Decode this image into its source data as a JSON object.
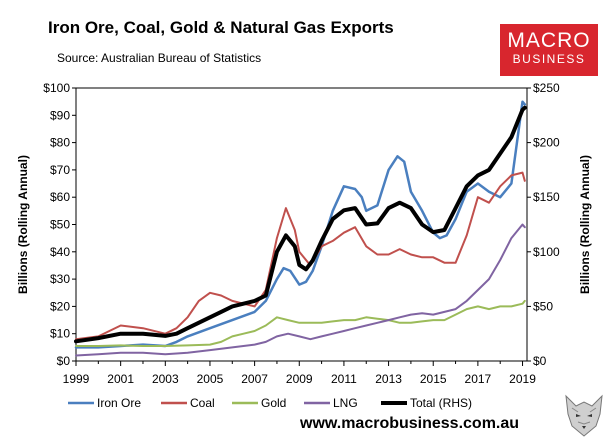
{
  "header": {
    "title": "Iron Ore, Coal, Gold & Natural Gas Exports",
    "subtitle": "Source:  Australian Bureau of Statistics"
  },
  "branding": {
    "logo_line1": "MACRO",
    "logo_line2": "BUSINESS",
    "url": "www.macrobusiness.com.au",
    "logo_color": "#d8262e"
  },
  "chart_data": {
    "type": "line",
    "title": "Iron Ore, Coal, Gold & Natural Gas Exports",
    "source": "Source:  Australian Bureau of Statistics",
    "xlabel": "",
    "ylabel": "Billions (Rolling Annual)",
    "ylabel_right": "Billions (Rolling Annual)",
    "xlim": [
      1999,
      2019.2
    ],
    "ylim": [
      0,
      100
    ],
    "ylim_right": [
      0,
      250
    ],
    "x_ticks": [
      1999,
      2001,
      2003,
      2005,
      2007,
      2009,
      2011,
      2013,
      2015,
      2017,
      2019
    ],
    "y_ticks": [
      0,
      10,
      20,
      30,
      40,
      50,
      60,
      70,
      80,
      90,
      100
    ],
    "y_tick_labels": [
      "$0",
      "$10",
      "$20",
      "$30",
      "$40",
      "$50",
      "$60",
      "$70",
      "$80",
      "$90",
      "$100"
    ],
    "y_ticks_right": [
      0,
      50,
      100,
      150,
      200,
      250
    ],
    "y_tick_labels_right": [
      "$0",
      "$50",
      "$100",
      "$150",
      "$200",
      "$250"
    ],
    "grid": false,
    "legend_position": "bottom",
    "series": [
      {
        "name": "Iron Ore",
        "axis": "left",
        "color": "#4a7fbf",
        "width": 2.5,
        "points": [
          [
            1999,
            5
          ],
          [
            2000,
            5
          ],
          [
            2001,
            5.5
          ],
          [
            2002,
            6
          ],
          [
            2003,
            5.5
          ],
          [
            2003.5,
            7
          ],
          [
            2004,
            9
          ],
          [
            2005,
            12
          ],
          [
            2006,
            15
          ],
          [
            2007,
            18
          ],
          [
            2007.5,
            22
          ],
          [
            2008,
            30
          ],
          [
            2008.3,
            34
          ],
          [
            2008.6,
            33
          ],
          [
            2009,
            28
          ],
          [
            2009.3,
            29
          ],
          [
            2009.6,
            33
          ],
          [
            2010,
            42
          ],
          [
            2010.5,
            55
          ],
          [
            2011,
            64
          ],
          [
            2011.5,
            63
          ],
          [
            2011.8,
            60
          ],
          [
            2012,
            55
          ],
          [
            2012.5,
            57
          ],
          [
            2013,
            70
          ],
          [
            2013.4,
            75
          ],
          [
            2013.7,
            73
          ],
          [
            2014,
            62
          ],
          [
            2014.5,
            55
          ],
          [
            2015,
            47
          ],
          [
            2015.3,
            45
          ],
          [
            2015.6,
            46
          ],
          [
            2016,
            52
          ],
          [
            2016.5,
            62
          ],
          [
            2017,
            65
          ],
          [
            2017.5,
            62
          ],
          [
            2018,
            60
          ],
          [
            2018.5,
            65
          ],
          [
            2019,
            95
          ],
          [
            2019.1,
            94
          ]
        ]
      },
      {
        "name": "Coal",
        "axis": "left",
        "color": "#c0504d",
        "width": 2,
        "points": [
          [
            1999,
            8
          ],
          [
            2000,
            9
          ],
          [
            2001,
            13
          ],
          [
            2002,
            12
          ],
          [
            2003,
            10
          ],
          [
            2003.5,
            12
          ],
          [
            2004,
            16
          ],
          [
            2004.5,
            22
          ],
          [
            2005,
            25
          ],
          [
            2005.5,
            24
          ],
          [
            2006,
            22
          ],
          [
            2006.5,
            21
          ],
          [
            2007,
            20
          ],
          [
            2007.5,
            26
          ],
          [
            2008,
            45
          ],
          [
            2008.4,
            56
          ],
          [
            2008.8,
            48
          ],
          [
            2009,
            40
          ],
          [
            2009.5,
            35
          ],
          [
            2010,
            42
          ],
          [
            2010.5,
            44
          ],
          [
            2011,
            47
          ],
          [
            2011.5,
            49
          ],
          [
            2012,
            42
          ],
          [
            2012.5,
            39
          ],
          [
            2013,
            39
          ],
          [
            2013.5,
            41
          ],
          [
            2014,
            39
          ],
          [
            2014.5,
            38
          ],
          [
            2015,
            38
          ],
          [
            2015.5,
            36
          ],
          [
            2016,
            36
          ],
          [
            2016.5,
            46
          ],
          [
            2017,
            60
          ],
          [
            2017.5,
            58
          ],
          [
            2018,
            64
          ],
          [
            2018.5,
            68
          ],
          [
            2019,
            69
          ],
          [
            2019.1,
            66
          ]
        ]
      },
      {
        "name": "Gold",
        "axis": "left",
        "color": "#9bbb59",
        "width": 2,
        "points": [
          [
            1999,
            5.5
          ],
          [
            2000,
            5.5
          ],
          [
            2001,
            5.7
          ],
          [
            2002,
            5.5
          ],
          [
            2003,
            5.5
          ],
          [
            2004,
            5.7
          ],
          [
            2005,
            6
          ],
          [
            2005.5,
            7
          ],
          [
            2006,
            9
          ],
          [
            2006.5,
            10
          ],
          [
            2007,
            11
          ],
          [
            2007.5,
            13
          ],
          [
            2008,
            16
          ],
          [
            2008.5,
            15
          ],
          [
            2009,
            14
          ],
          [
            2009.5,
            14
          ],
          [
            2010,
            14
          ],
          [
            2010.5,
            14.5
          ],
          [
            2011,
            15
          ],
          [
            2011.5,
            15
          ],
          [
            2012,
            16
          ],
          [
            2012.5,
            15.5
          ],
          [
            2013,
            15
          ],
          [
            2013.5,
            14
          ],
          [
            2014,
            14
          ],
          [
            2014.5,
            14.5
          ],
          [
            2015,
            15
          ],
          [
            2015.5,
            15
          ],
          [
            2016,
            17
          ],
          [
            2016.5,
            19
          ],
          [
            2017,
            20
          ],
          [
            2017.5,
            19
          ],
          [
            2018,
            20
          ],
          [
            2018.5,
            20
          ],
          [
            2019,
            21
          ],
          [
            2019.1,
            22
          ]
        ]
      },
      {
        "name": "LNG",
        "axis": "left",
        "color": "#8064a2",
        "width": 2,
        "points": [
          [
            1999,
            2
          ],
          [
            2000,
            2.5
          ],
          [
            2001,
            3
          ],
          [
            2002,
            3
          ],
          [
            2003,
            2.5
          ],
          [
            2004,
            3
          ],
          [
            2005,
            4
          ],
          [
            2006,
            5
          ],
          [
            2007,
            6
          ],
          [
            2007.5,
            7
          ],
          [
            2008,
            9
          ],
          [
            2008.5,
            10
          ],
          [
            2009,
            9
          ],
          [
            2009.5,
            8
          ],
          [
            2010,
            9
          ],
          [
            2010.5,
            10
          ],
          [
            2011,
            11
          ],
          [
            2011.5,
            12
          ],
          [
            2012,
            13
          ],
          [
            2012.5,
            14
          ],
          [
            2013,
            15
          ],
          [
            2013.5,
            16
          ],
          [
            2014,
            17
          ],
          [
            2014.5,
            17.5
          ],
          [
            2015,
            17
          ],
          [
            2015.5,
            18
          ],
          [
            2016,
            19
          ],
          [
            2016.5,
            22
          ],
          [
            2017,
            26
          ],
          [
            2017.5,
            30
          ],
          [
            2018,
            37
          ],
          [
            2018.5,
            45
          ],
          [
            2019,
            50
          ],
          [
            2019.1,
            49
          ]
        ]
      },
      {
        "name": "Total (RHS)",
        "axis": "right",
        "color": "#000000",
        "width": 4,
        "points": [
          [
            1999,
            18
          ],
          [
            2000,
            21
          ],
          [
            2001,
            25
          ],
          [
            2002,
            25
          ],
          [
            2003,
            23
          ],
          [
            2003.5,
            25
          ],
          [
            2004,
            30
          ],
          [
            2005,
            40
          ],
          [
            2005.5,
            45
          ],
          [
            2006,
            50
          ],
          [
            2007,
            55
          ],
          [
            2007.5,
            60
          ],
          [
            2008,
            100
          ],
          [
            2008.4,
            115
          ],
          [
            2008.8,
            105
          ],
          [
            2009,
            88
          ],
          [
            2009.3,
            84
          ],
          [
            2009.6,
            92
          ],
          [
            2010,
            110
          ],
          [
            2010.5,
            130
          ],
          [
            2011,
            138
          ],
          [
            2011.5,
            140
          ],
          [
            2012,
            125
          ],
          [
            2012.5,
            126
          ],
          [
            2013,
            140
          ],
          [
            2013.5,
            145
          ],
          [
            2014,
            140
          ],
          [
            2014.5,
            125
          ],
          [
            2015,
            118
          ],
          [
            2015.5,
            120
          ],
          [
            2016,
            140
          ],
          [
            2016.5,
            160
          ],
          [
            2017,
            170
          ],
          [
            2017.5,
            175
          ],
          [
            2018,
            190
          ],
          [
            2018.5,
            205
          ],
          [
            2019,
            230
          ],
          [
            2019.1,
            232
          ]
        ]
      }
    ]
  }
}
